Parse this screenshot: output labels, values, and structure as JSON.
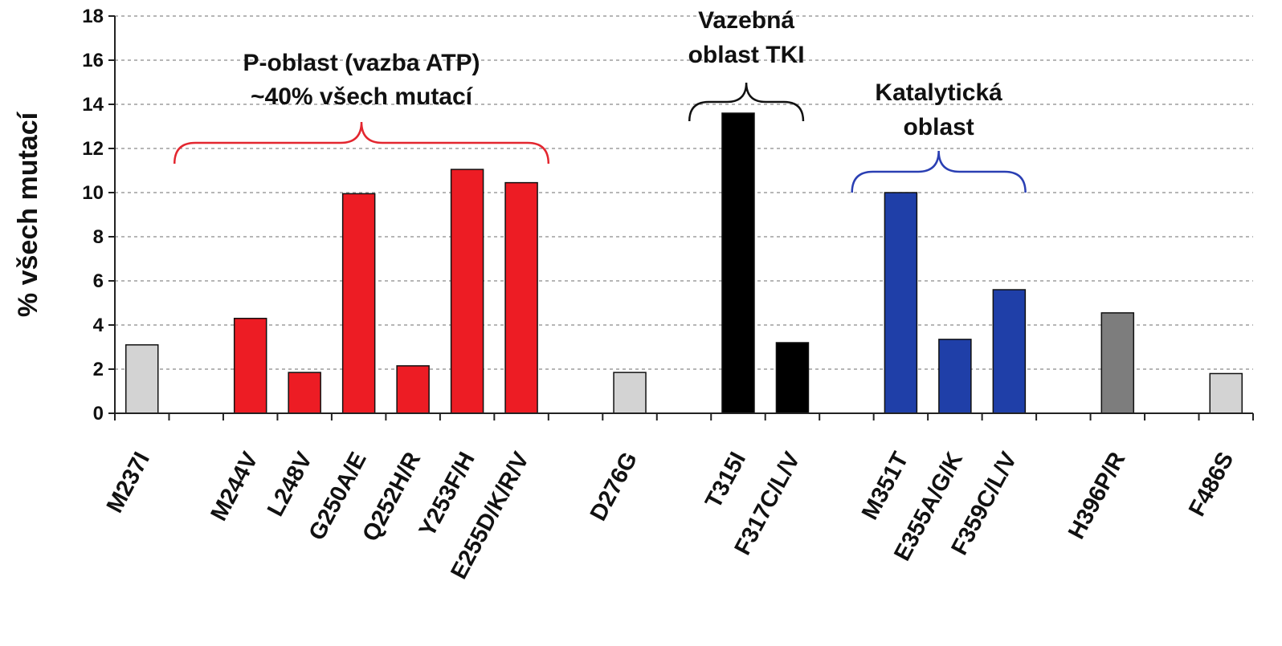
{
  "chart_data": {
    "type": "bar",
    "title": "",
    "xlabel": "",
    "ylabel": "% všech mutací",
    "ylim": [
      0,
      18
    ],
    "yticks": [
      0,
      2,
      4,
      6,
      8,
      10,
      12,
      14,
      16,
      18
    ],
    "grid": true,
    "categories": [
      "M237I",
      "",
      "M244V",
      "L248V",
      "G250A/E",
      "Q252H/R",
      "Y253F/H",
      "E255D/K/R/V",
      "",
      "D276G",
      "",
      "T315I",
      "F317C/L/V",
      "",
      "M351T",
      "E355A/G/K",
      "F359C/L/V",
      "",
      "H396P/R",
      "",
      "F486S"
    ],
    "values": [
      3.1,
      null,
      4.3,
      1.85,
      9.95,
      2.15,
      11.05,
      10.45,
      null,
      1.85,
      null,
      13.6,
      3.2,
      null,
      10.0,
      3.35,
      5.6,
      null,
      4.55,
      null,
      1.8
    ],
    "bar_colors": [
      "#d3d3d3",
      null,
      "#ed1c24",
      "#ed1c24",
      "#ed1c24",
      "#ed1c24",
      "#ed1c24",
      "#ed1c24",
      null,
      "#d3d3d3",
      null,
      "#000000",
      "#000000",
      null,
      "#1f3fa8",
      "#1f3fa8",
      "#1f3fa8",
      null,
      "#7d7d7d",
      null,
      "#d3d3d3"
    ],
    "annotations": [
      {
        "lines": [
          "P-oblast (vazba ATP)",
          "~40% všech mutací"
        ],
        "bracket_color": "#e3262f",
        "from_category": 1,
        "to_category": 8
      },
      {
        "lines": [
          "Vazebná",
          "oblast TKI"
        ],
        "bracket_color": "#111111",
        "from_category": 10.5,
        "to_category": 12.7
      },
      {
        "lines": [
          "Katalytická",
          "oblast"
        ],
        "bracket_color": "#2a3fb3",
        "from_category": 13.5,
        "to_category": 16.8
      }
    ]
  }
}
